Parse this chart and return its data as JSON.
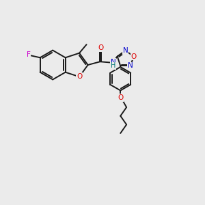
{
  "background_color": "#ebebeb",
  "bond_color": "#1a1a1a",
  "atom_colors": {
    "F": "#cc00cc",
    "O": "#dd0000",
    "N": "#0000cc",
    "H": "#007777",
    "C": "#1a1a1a"
  },
  "figsize": [
    3.0,
    3.0
  ],
  "dpi": 100,
  "lw": 1.4,
  "fs": 7.5
}
